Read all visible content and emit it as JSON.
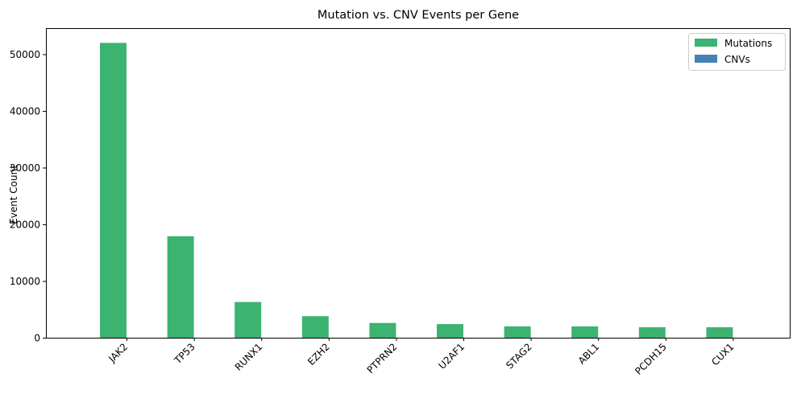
{
  "chart_data": {
    "type": "bar",
    "title": "Mutation vs. CNV Events per Gene",
    "xlabel": "",
    "ylabel": "Event Count",
    "categories": [
      "JAK2",
      "TP53",
      "RUNX1",
      "EZH2",
      "PTPRN2",
      "U2AF1",
      "STAG2",
      "ABL1",
      "PCDH15",
      "CUX1"
    ],
    "series": [
      {
        "name": "Mutations",
        "color": "#3cb371",
        "values": [
          52000,
          17900,
          6300,
          3800,
          2600,
          2400,
          2000,
          2000,
          1850,
          1850
        ]
      },
      {
        "name": "CNVs",
        "color": "#4682b4",
        "values": [
          0,
          0,
          0,
          0,
          0,
          0,
          0,
          0,
          0,
          0
        ]
      }
    ],
    "ylim": [
      0,
      54600
    ],
    "yticks": [
      0,
      10000,
      20000,
      30000,
      40000,
      50000
    ],
    "legend_position": "top-right",
    "grid": false
  }
}
